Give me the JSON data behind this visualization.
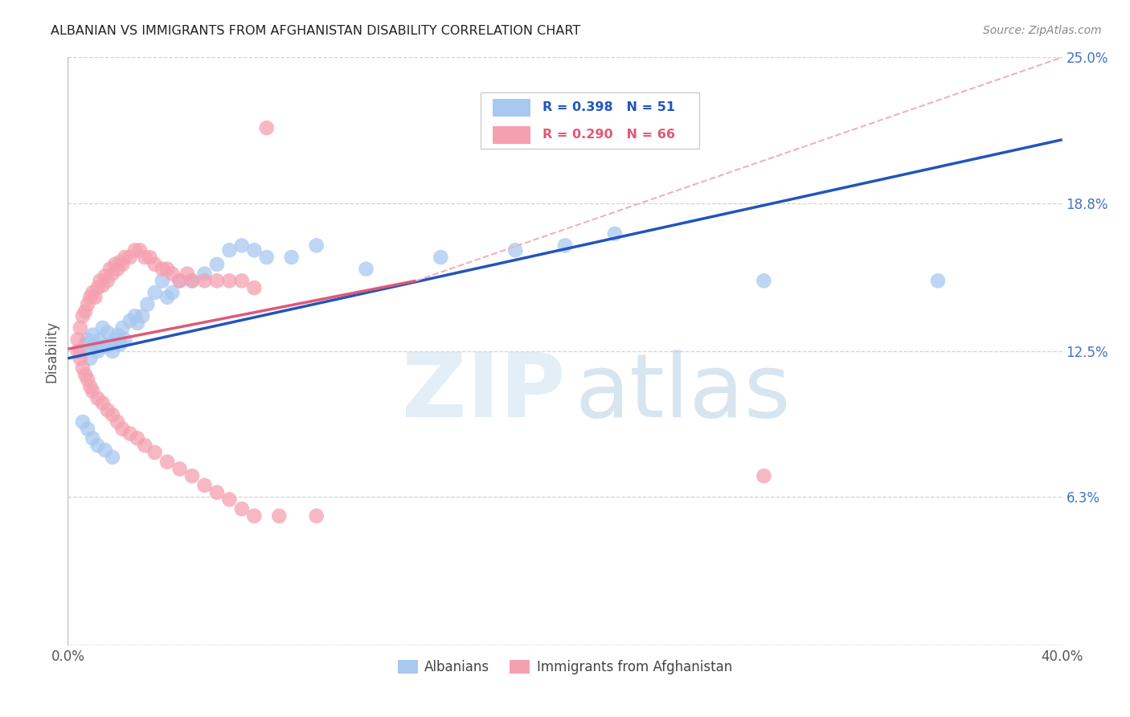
{
  "title": "ALBANIAN VS IMMIGRANTS FROM AFGHANISTAN DISABILITY CORRELATION CHART",
  "source": "Source: ZipAtlas.com",
  "ylabel": "Disability",
  "xlim": [
    0.0,
    0.4
  ],
  "ylim": [
    0.0,
    0.25
  ],
  "background_color": "#ffffff",
  "grid_color": "#c8c8c8",
  "albanians_color": "#a8c8f0",
  "afghanistan_color": "#f5a0b0",
  "line_blue": "#2255bb",
  "line_pink": "#e05878",
  "line_pink_dash": "#f0b0be",
  "albanians_scatter_x": [
    0.005,
    0.007,
    0.008,
    0.009,
    0.01,
    0.01,
    0.011,
    0.012,
    0.013,
    0.014,
    0.015,
    0.016,
    0.017,
    0.018,
    0.019,
    0.02,
    0.021,
    0.022,
    0.023,
    0.025,
    0.027,
    0.028,
    0.03,
    0.032,
    0.035,
    0.038,
    0.04,
    0.042,
    0.045,
    0.05,
    0.055,
    0.06,
    0.065,
    0.07,
    0.075,
    0.08,
    0.09,
    0.1,
    0.12,
    0.15,
    0.18,
    0.2,
    0.22,
    0.28,
    0.35,
    0.006,
    0.008,
    0.01,
    0.012,
    0.015,
    0.018
  ],
  "albanians_scatter_y": [
    0.125,
    0.128,
    0.13,
    0.122,
    0.127,
    0.132,
    0.128,
    0.125,
    0.13,
    0.135,
    0.127,
    0.133,
    0.128,
    0.125,
    0.13,
    0.132,
    0.128,
    0.135,
    0.13,
    0.138,
    0.14,
    0.137,
    0.14,
    0.145,
    0.15,
    0.155,
    0.148,
    0.15,
    0.155,
    0.155,
    0.158,
    0.162,
    0.168,
    0.17,
    0.168,
    0.165,
    0.165,
    0.17,
    0.16,
    0.165,
    0.168,
    0.17,
    0.175,
    0.155,
    0.155,
    0.095,
    0.092,
    0.088,
    0.085,
    0.083,
    0.08
  ],
  "afghanistan_scatter_x": [
    0.004,
    0.005,
    0.006,
    0.007,
    0.008,
    0.009,
    0.01,
    0.011,
    0.012,
    0.013,
    0.014,
    0.015,
    0.016,
    0.017,
    0.018,
    0.019,
    0.02,
    0.021,
    0.022,
    0.023,
    0.025,
    0.027,
    0.029,
    0.031,
    0.033,
    0.035,
    0.038,
    0.04,
    0.042,
    0.045,
    0.048,
    0.05,
    0.055,
    0.06,
    0.065,
    0.07,
    0.075,
    0.08,
    0.004,
    0.005,
    0.006,
    0.007,
    0.008,
    0.009,
    0.01,
    0.012,
    0.014,
    0.016,
    0.018,
    0.02,
    0.022,
    0.025,
    0.028,
    0.031,
    0.035,
    0.04,
    0.045,
    0.05,
    0.055,
    0.06,
    0.065,
    0.07,
    0.075,
    0.085,
    0.1,
    0.28
  ],
  "afghanistan_scatter_y": [
    0.13,
    0.135,
    0.14,
    0.142,
    0.145,
    0.148,
    0.15,
    0.148,
    0.152,
    0.155,
    0.153,
    0.157,
    0.155,
    0.16,
    0.158,
    0.162,
    0.16,
    0.163,
    0.162,
    0.165,
    0.165,
    0.168,
    0.168,
    0.165,
    0.165,
    0.162,
    0.16,
    0.16,
    0.158,
    0.155,
    0.158,
    0.155,
    0.155,
    0.155,
    0.155,
    0.155,
    0.152,
    0.22,
    0.125,
    0.122,
    0.118,
    0.115,
    0.113,
    0.11,
    0.108,
    0.105,
    0.103,
    0.1,
    0.098,
    0.095,
    0.092,
    0.09,
    0.088,
    0.085,
    0.082,
    0.078,
    0.075,
    0.072,
    0.068,
    0.065,
    0.062,
    0.058,
    0.055,
    0.055,
    0.055,
    0.072
  ]
}
